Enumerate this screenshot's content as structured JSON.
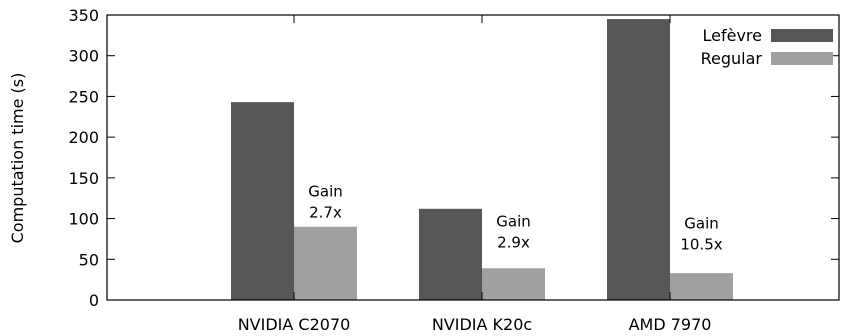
{
  "chart_data": {
    "type": "bar",
    "categories": [
      "NVIDIA C2070",
      "NVIDIA K20c",
      "AMD 7970"
    ],
    "series": [
      {
        "name": "Lefèvre",
        "values": [
          243,
          112,
          345
        ],
        "color": "#575757"
      },
      {
        "name": "Regular",
        "values": [
          90,
          39,
          33
        ],
        "color": "#a0a0a0"
      }
    ],
    "ylabel": "Computation time (s)",
    "ylim": [
      0,
      350
    ],
    "yticks": [
      0,
      50,
      100,
      150,
      200,
      250,
      300,
      350
    ],
    "ytick_labels": [
      "0",
      "50",
      "100",
      "150",
      "200",
      "250",
      "300",
      "350"
    ],
    "grid": false,
    "legend_position": "top-right",
    "annotations": [
      {
        "lines": [
          "Gain",
          "2.7x"
        ],
        "category": "NVIDIA C2070",
        "y_value": 127
      },
      {
        "lines": [
          "Gain",
          "2.9x"
        ],
        "category": "NVIDIA K20c",
        "y_value": 90
      },
      {
        "lines": [
          "Gain",
          "10.5x"
        ],
        "category": "AMD 7970",
        "y_value": 88
      }
    ]
  }
}
